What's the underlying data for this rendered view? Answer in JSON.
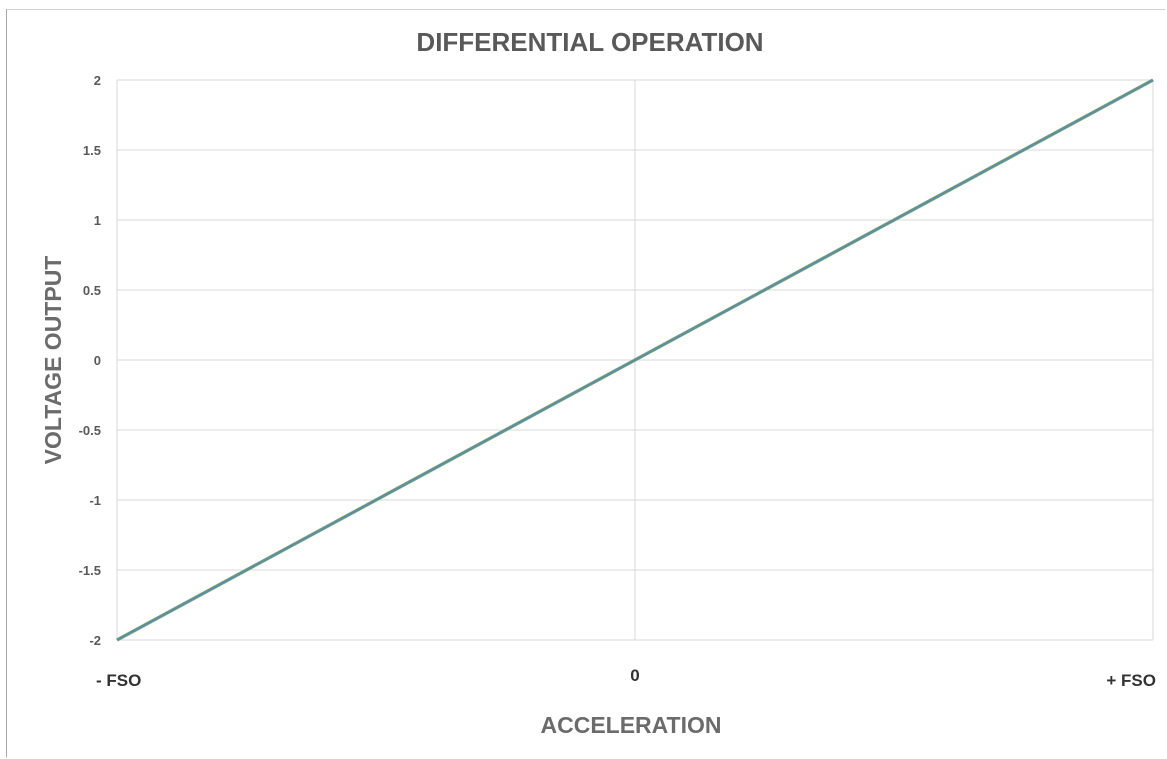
{
  "chart_data": {
    "type": "line",
    "title": "DIFFERENTIAL OPERATION",
    "xlabel": "ACCELERATION",
    "ylabel": "VOLTAGE OUTPUT",
    "x_tick_labels": [
      "- FSO",
      "0",
      "+ FSO"
    ],
    "y_tick_labels": [
      "2",
      "1.5",
      "1",
      "0.5",
      "0",
      "-0.5",
      "-1",
      "-1.5",
      "-2"
    ],
    "ylim": [
      -2,
      2
    ],
    "xlim": [
      -1,
      1
    ],
    "grid": true,
    "series": [
      {
        "x": [
          -1,
          0,
          1
        ],
        "y": [
          -2,
          0,
          2
        ],
        "color": "#5b8fa8"
      }
    ]
  }
}
